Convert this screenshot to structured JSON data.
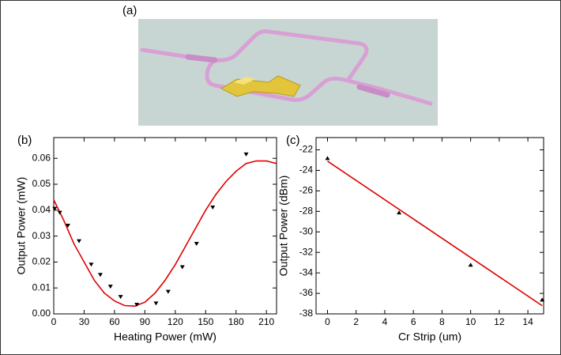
{
  "figure_label": "(a)",
  "chart_data": [
    {
      "type": "scatter",
      "label": "(b)",
      "xlabel": "Heating Power (mW)",
      "ylabel": "Output Power (mW)",
      "xlim": [
        0,
        220
      ],
      "xticks": [
        0,
        30,
        60,
        90,
        120,
        150,
        180,
        210
      ],
      "ylim": [
        0,
        0.068
      ],
      "yticks": [
        {
          "value": 0,
          "label": "0.00"
        },
        0.01,
        0.02,
        0.03,
        0.04,
        0.05,
        0.06
      ],
      "marker": "triangle-down",
      "marker_color": "#000000",
      "points": {
        "x": [
          1,
          6,
          14,
          25,
          37,
          46,
          56,
          66,
          82,
          101,
          113,
          127,
          141,
          157,
          190
        ],
        "values": [
          0.0405,
          0.039,
          0.034,
          0.028,
          0.019,
          0.015,
          0.0105,
          0.0065,
          0.0035,
          0.004,
          0.0085,
          0.018,
          0.027,
          0.041,
          0.0615
        ]
      },
      "fit": {
        "color": "#e00000",
        "x": [
          0,
          10,
          20,
          30,
          40,
          50,
          60,
          70,
          80,
          90,
          100,
          110,
          120,
          130,
          140,
          150,
          160,
          170,
          180,
          190,
          200,
          210,
          220
        ],
        "values": [
          0.044,
          0.036,
          0.027,
          0.02,
          0.013,
          0.008,
          0.005,
          0.0032,
          0.003,
          0.0045,
          0.008,
          0.013,
          0.019,
          0.026,
          0.033,
          0.04,
          0.046,
          0.051,
          0.055,
          0.058,
          0.059,
          0.059,
          0.058
        ]
      }
    },
    {
      "type": "scatter",
      "label": "(c)",
      "xlabel": "Cr Strip (um)",
      "ylabel": "Output Power (dBm)",
      "xlim": [
        -0.8,
        15.1
      ],
      "xticks": [
        0,
        2,
        4,
        6,
        8,
        10,
        12,
        14
      ],
      "ylim": [
        -38,
        -20.8
      ],
      "yticks": [
        -38,
        -36,
        -34,
        -32,
        -30,
        -28,
        -26,
        -24,
        -22
      ],
      "marker": "triangle-up",
      "marker_color": "#000000",
      "points": {
        "x": [
          0,
          5,
          10,
          15
        ],
        "values": [
          -22.8,
          -28.1,
          -33.2,
          -36.6
        ]
      },
      "fit": {
        "color": "#e00000",
        "x": [
          0,
          15
        ],
        "values": [
          -23.1,
          -37.2
        ]
      }
    }
  ]
}
